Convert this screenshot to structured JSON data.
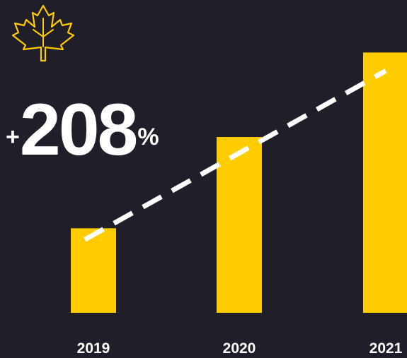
{
  "headline": {
    "prefix": "+",
    "value": "208",
    "suffix": "%"
  },
  "icon": "maple-leaf-icon",
  "colors": {
    "background": "#1f1e29",
    "bar": "#ffcc00",
    "trend_line": "#ffffff",
    "text": "#ffffff",
    "icon": "#ffcc00"
  },
  "chart_data": {
    "type": "bar",
    "categories": [
      "2019",
      "2020",
      "2021"
    ],
    "values": [
      100,
      208,
      308
    ],
    "ylim": [
      0,
      320
    ],
    "grid": false,
    "trend_line": {
      "style": "dashed",
      "from": "2019",
      "to": "2021"
    },
    "title": "",
    "xlabel": "",
    "ylabel": ""
  }
}
